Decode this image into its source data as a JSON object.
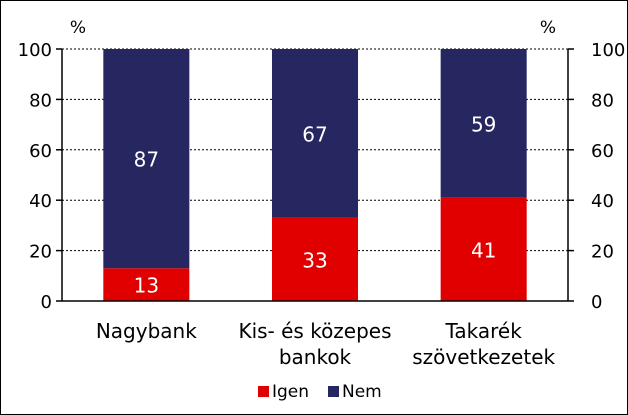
{
  "chart_data": {
    "type": "bar",
    "stacked": true,
    "title": "",
    "unit_left": "%",
    "unit_right": "%",
    "categories": [
      [
        "Nagybank"
      ],
      [
        "Kis- és közepes",
        "bankok"
      ],
      [
        "Takarék",
        "szövetkezetek"
      ]
    ],
    "series": [
      {
        "name": "Igen",
        "color": "#e00000",
        "values": [
          13,
          33,
          41
        ]
      },
      {
        "name": "Nem",
        "color": "#262660",
        "values": [
          87,
          67,
          59
        ]
      }
    ],
    "ylim": [
      0,
      100
    ],
    "yticks": [
      0,
      20,
      40,
      60,
      80,
      100
    ],
    "grid": true,
    "legend": "bottom"
  }
}
